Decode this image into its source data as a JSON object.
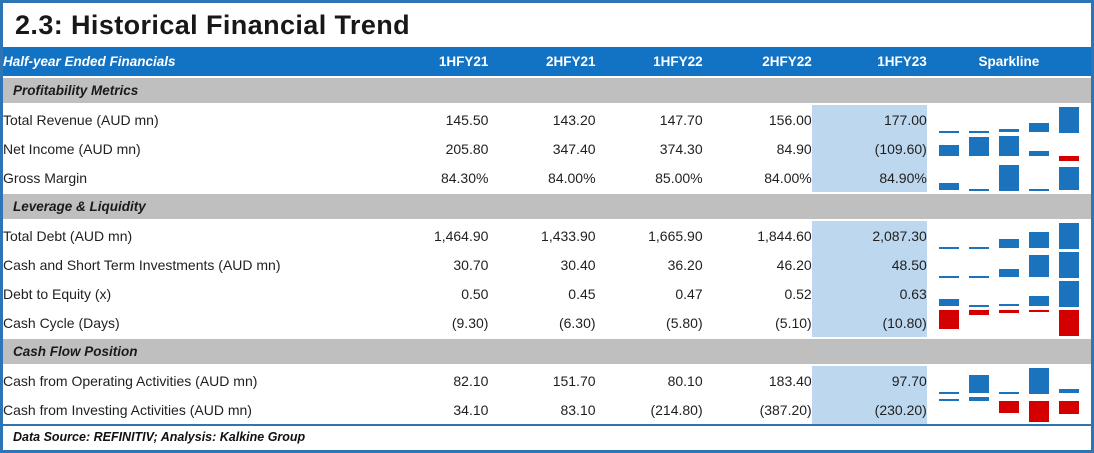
{
  "title": "2.3: Historical Financial Trend",
  "header": {
    "label": "Half-year Ended Financials",
    "columns": [
      "1HFY21",
      "2HFY21",
      "1HFY22",
      "2HFY22",
      "1HFY23",
      "Sparkline"
    ]
  },
  "highlight_column": "1HFY23",
  "colors": {
    "header_bg": "#1273C4",
    "section_bg": "#BFBFBF",
    "highlight_bg": "#BDD7EE",
    "spark_positive": "#1B73BE",
    "spark_negative": "#D40000",
    "frame_border": "#2E75B6"
  },
  "sections": [
    {
      "name": "Profitability Metrics",
      "rows": [
        {
          "label": "Total Revenue (AUD mn)",
          "values": [
            "145.50",
            "143.20",
            "147.70",
            "156.00",
            "177.00"
          ],
          "nums": [
            145.5,
            143.2,
            147.7,
            156.0,
            177.0
          ]
        },
        {
          "label": "Net Income (AUD mn)",
          "values": [
            "205.80",
            "347.40",
            "374.30",
            "84.90",
            "(109.60)"
          ],
          "nums": [
            205.8,
            347.4,
            374.3,
            84.9,
            -109.6
          ]
        },
        {
          "label": "Gross Margin",
          "values": [
            "84.30%",
            "84.00%",
            "85.00%",
            "84.00%",
            "84.90%"
          ],
          "nums": [
            84.3,
            84.0,
            85.0,
            84.0,
            84.9
          ]
        }
      ]
    },
    {
      "name": "Leverage & Liquidity",
      "rows": [
        {
          "label": "Total Debt (AUD mn)",
          "values": [
            "1,464.90",
            "1,433.90",
            "1,665.90",
            "1,844.60",
            "2,087.30"
          ],
          "nums": [
            1464.9,
            1433.9,
            1665.9,
            1844.6,
            2087.3
          ]
        },
        {
          "label": "Cash and Short Term Investments (AUD mn)",
          "values": [
            "30.70",
            "30.40",
            "36.20",
            "46.20",
            "48.50"
          ],
          "nums": [
            30.7,
            30.4,
            36.2,
            46.2,
            48.5
          ]
        },
        {
          "label": "Debt to Equity (x)",
          "values": [
            "0.50",
            "0.45",
            "0.47",
            "0.52",
            "0.63"
          ],
          "nums": [
            0.5,
            0.45,
            0.47,
            0.52,
            0.63
          ]
        },
        {
          "label": "Cash Cycle (Days)",
          "values": [
            "(9.30)",
            "(6.30)",
            "(5.80)",
            "(5.10)",
            "(10.80)"
          ],
          "nums": [
            -9.3,
            -6.3,
            -5.8,
            -5.1,
            -10.8
          ]
        }
      ]
    },
    {
      "name": "Cash Flow Position",
      "rows": [
        {
          "label": "Cash from Operating Activities (AUD mn)",
          "values": [
            "82.10",
            "151.70",
            "80.10",
            "183.40",
            "97.70"
          ],
          "nums": [
            82.1,
            151.7,
            80.1,
            183.4,
            97.7
          ]
        },
        {
          "label": "Cash from Investing Activities (AUD mn)",
          "values": [
            "34.10",
            "83.10",
            "(214.80)",
            "(387.20)",
            "(230.20)"
          ],
          "nums": [
            34.1,
            83.1,
            -214.8,
            -387.2,
            -230.2
          ]
        }
      ]
    }
  ],
  "footer": "Data Source: REFINITIV; Analysis: Kalkine Group",
  "chart_data": {
    "type": "table",
    "title": "2.3: Historical Financial Trend",
    "columns": [
      "Half-year Ended Financials",
      "1HFY21",
      "2HFY21",
      "1HFY22",
      "2HFY22",
      "1HFY23",
      "Sparkline"
    ],
    "highlighted_column": "1HFY23",
    "groups": [
      {
        "group": "Profitability Metrics",
        "rows": [
          {
            "label": "Total Revenue (AUD mn)",
            "values": [
              145.5,
              143.2,
              147.7,
              156.0,
              177.0
            ]
          },
          {
            "label": "Net Income (AUD mn)",
            "values": [
              205.8,
              347.4,
              374.3,
              84.9,
              -109.6
            ]
          },
          {
            "label": "Gross Margin (%)",
            "values": [
              84.3,
              84.0,
              85.0,
              84.0,
              84.9
            ]
          }
        ]
      },
      {
        "group": "Leverage & Liquidity",
        "rows": [
          {
            "label": "Total Debt (AUD mn)",
            "values": [
              1464.9,
              1433.9,
              1665.9,
              1844.6,
              2087.3
            ]
          },
          {
            "label": "Cash and Short Term Investments (AUD mn)",
            "values": [
              30.7,
              30.4,
              36.2,
              46.2,
              48.5
            ]
          },
          {
            "label": "Debt to Equity (x)",
            "values": [
              0.5,
              0.45,
              0.47,
              0.52,
              0.63
            ]
          },
          {
            "label": "Cash Cycle (Days)",
            "values": [
              -9.3,
              -6.3,
              -5.8,
              -5.1,
              -10.8
            ]
          }
        ]
      },
      {
        "group": "Cash Flow Position",
        "rows": [
          {
            "label": "Cash from Operating Activities (AUD mn)",
            "values": [
              82.1,
              151.7,
              80.1,
              183.4,
              97.7
            ]
          },
          {
            "label": "Cash from Investing Activities (AUD mn)",
            "values": [
              34.1,
              83.1,
              -214.8,
              -387.2,
              -230.2
            ]
          }
        ]
      }
    ],
    "sparkline_type": "column",
    "sparkline_negative_color": "#D40000",
    "sparkline_positive_color": "#1B73BE"
  }
}
